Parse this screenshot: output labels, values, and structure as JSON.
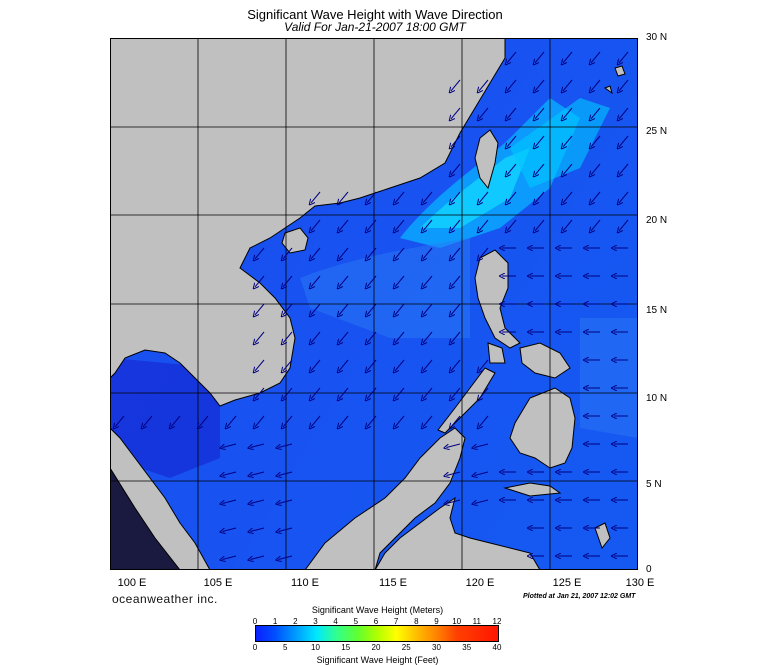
{
  "title": "Significant Wave Height with Wave Direction",
  "subtitle": "Valid For Jan-21-2007 18:00 GMT",
  "lat_labels": [
    "30 N",
    "25 N",
    "20 N",
    "15 N",
    "10 N",
    "5 N",
    "0"
  ],
  "lon_labels": [
    "100 E",
    "105 E",
    "110 E",
    "115 E",
    "120 E",
    "125 E",
    "130 E"
  ],
  "brand": "oceanweather inc.",
  "plotted": "Plotted at Jan 21, 2007 12:02 GMT",
  "colorbar": {
    "title_meters": "Significant Wave Height (Meters)",
    "title_feet": "Significant Wave Height (Feet)",
    "meters_ticks": [
      "0",
      "1",
      "2",
      "3",
      "4",
      "5",
      "6",
      "7",
      "8",
      "9",
      "10",
      "11",
      "12"
    ],
    "feet_ticks": [
      "0",
      "5",
      "10",
      "15",
      "20",
      "25",
      "30",
      "35",
      "40"
    ]
  },
  "colors": {
    "land": "#c0c0c0",
    "ocean_base": "#1a55f0",
    "ocean_high": "#00d8ff",
    "arrow": "#000080"
  },
  "map_extent": {
    "lon": [
      100,
      130
    ],
    "lat": [
      0,
      30
    ]
  },
  "wave_direction_note": "arrows point toward southwest in north, west in east"
}
